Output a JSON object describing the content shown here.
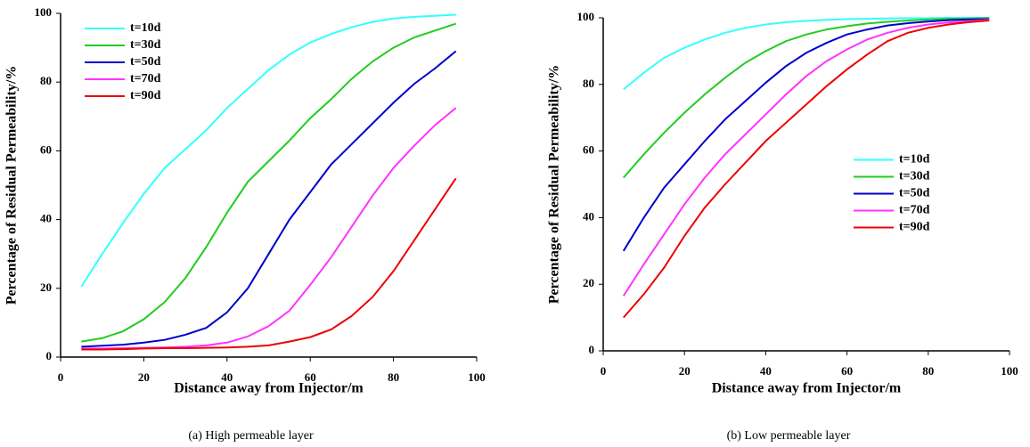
{
  "chart_data": [
    {
      "type": "line",
      "caption": "(a) High permeable layer",
      "x_label": "Distance away from Injector/m",
      "y_label": "Percentage of Residual Permeability/%",
      "x": [
        5,
        10,
        15,
        20,
        25,
        30,
        35,
        40,
        45,
        50,
        55,
        60,
        65,
        70,
        75,
        80,
        85,
        90,
        95
      ],
      "xlim": [
        0,
        100
      ],
      "xticks": [
        0,
        20,
        40,
        60,
        80,
        100
      ],
      "ylim": [
        0,
        100
      ],
      "yticks": [
        0,
        20,
        40,
        60,
        80,
        100
      ],
      "legend": "upper left",
      "series": [
        {
          "name": "t=10d",
          "color": "#33ffff",
          "values": [
            20.5,
            30,
            39,
            47.5,
            55,
            60.5,
            66,
            72.5,
            78,
            83.5,
            88,
            91.5,
            94,
            96,
            97.5,
            98.5,
            99,
            99.3,
            99.6
          ]
        },
        {
          "name": "t=30d",
          "color": "#22cc22",
          "values": [
            4.5,
            5.5,
            7.5,
            11,
            16,
            23,
            32,
            42,
            51,
            57,
            63,
            69.5,
            75,
            81,
            86,
            90,
            93,
            95,
            97
          ]
        },
        {
          "name": "t=50d",
          "color": "#0000cc",
          "values": [
            3,
            3.3,
            3.6,
            4.2,
            5,
            6.5,
            8.5,
            13,
            20,
            30,
            40,
            48,
            56,
            62,
            68,
            74,
            79.5,
            84,
            89
          ]
        },
        {
          "name": "t=70d",
          "color": "#ff33ff",
          "values": [
            2.5,
            2.5,
            2.6,
            2.7,
            2.8,
            3,
            3.4,
            4.2,
            6,
            9,
            13.5,
            21,
            29,
            38,
            47,
            55,
            61.5,
            67.5,
            72.5
          ]
        },
        {
          "name": "t=90d",
          "color": "#ee0000",
          "values": [
            2.2,
            2.2,
            2.3,
            2.5,
            2.6,
            2.6,
            2.7,
            2.8,
            3,
            3.4,
            4.5,
            5.8,
            8,
            12,
            17.5,
            25,
            34,
            43,
            52
          ]
        }
      ]
    },
    {
      "type": "line",
      "caption": "(b) Low permeable layer",
      "x_label": "Distance away from Injector/m",
      "y_label": "Percentage of Residual Permeability/%",
      "x": [
        5,
        10,
        15,
        20,
        25,
        30,
        35,
        40,
        45,
        50,
        55,
        60,
        65,
        70,
        75,
        80,
        85,
        90,
        95
      ],
      "xlim": [
        0,
        100
      ],
      "xticks": [
        0,
        20,
        40,
        60,
        80,
        100
      ],
      "ylim": [
        0,
        100
      ],
      "yticks": [
        0,
        20,
        40,
        60,
        80,
        100
      ],
      "legend": "center right",
      "series": [
        {
          "name": "t=10d",
          "color": "#33ffff",
          "values": [
            78.5,
            83.5,
            88,
            91,
            93.5,
            95.5,
            97,
            98,
            98.7,
            99.1,
            99.4,
            99.6,
            99.7,
            99.8,
            99.9,
            99.9,
            100,
            100,
            100
          ]
        },
        {
          "name": "t=30d",
          "color": "#22cc22",
          "values": [
            52,
            59,
            65.5,
            71.5,
            77,
            82,
            86.5,
            90,
            93,
            95,
            96.5,
            97.5,
            98.3,
            98.8,
            99.2,
            99.5,
            99.7,
            99.8,
            99.9
          ]
        },
        {
          "name": "t=50d",
          "color": "#0000cc",
          "values": [
            30,
            40,
            49,
            56,
            63,
            69.5,
            75,
            80.5,
            85.5,
            89.5,
            92.5,
            95,
            96.5,
            97.7,
            98.4,
            98.9,
            99.3,
            99.5,
            99.6
          ]
        },
        {
          "name": "t=70d",
          "color": "#ff33ff",
          "values": [
            16.5,
            26,
            35,
            44,
            52,
            59,
            65,
            71,
            77,
            82.5,
            87,
            90.5,
            93.5,
            95.5,
            97,
            98,
            98.6,
            99,
            99.4
          ]
        },
        {
          "name": "t=90d",
          "color": "#ee0000",
          "values": [
            10,
            17,
            25,
            34.5,
            43,
            50,
            56.5,
            63,
            68.5,
            74,
            79.5,
            84.5,
            89,
            93,
            95.5,
            97,
            98,
            98.7,
            99.2
          ]
        }
      ]
    }
  ]
}
